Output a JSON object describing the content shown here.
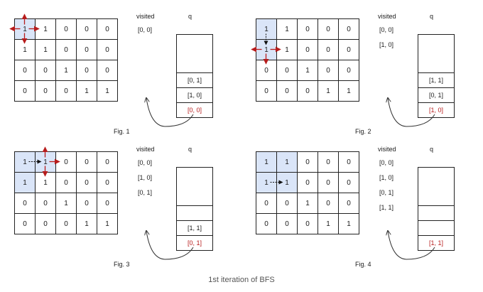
{
  "visited_label": "visited",
  "queue_label": "q",
  "caption": "1st iteration of BFS",
  "figures": [
    {
      "label": "Fig. 1",
      "matrix": [
        [
          "1",
          "1",
          "0",
          "0",
          "0"
        ],
        [
          "1",
          "1",
          "0",
          "0",
          "0"
        ],
        [
          "0",
          "0",
          "1",
          "0",
          "0"
        ],
        [
          "0",
          "0",
          "0",
          "1",
          "1"
        ]
      ],
      "highlight": [
        [
          0,
          0
        ]
      ],
      "visited": [
        "[0, 0]"
      ],
      "queue": [
        "[0, 0]",
        "[1, 0]",
        "[0, 1]"
      ],
      "queue_highlight": 0
    },
    {
      "label": "Fig. 2",
      "matrix": [
        [
          "1",
          "1",
          "0",
          "0",
          "0"
        ],
        [
          "1",
          "1",
          "0",
          "0",
          "0"
        ],
        [
          "0",
          "0",
          "1",
          "0",
          "0"
        ],
        [
          "0",
          "0",
          "0",
          "1",
          "1"
        ]
      ],
      "highlight": [
        [
          0,
          0
        ],
        [
          1,
          0
        ]
      ],
      "visited": [
        "[0, 0]",
        "[1, 0]"
      ],
      "queue": [
        "[1, 0]",
        "[0, 1]",
        "[1, 1]"
      ],
      "queue_highlight": 0
    },
    {
      "label": "Fig. 3",
      "matrix": [
        [
          "1",
          "1",
          "0",
          "0",
          "0"
        ],
        [
          "1",
          "1",
          "0",
          "0",
          "0"
        ],
        [
          "0",
          "0",
          "1",
          "0",
          "0"
        ],
        [
          "0",
          "0",
          "0",
          "1",
          "1"
        ]
      ],
      "highlight": [
        [
          0,
          0
        ],
        [
          1,
          0
        ],
        [
          0,
          1
        ]
      ],
      "visited": [
        "[0, 0]",
        "[1, 0]",
        "[0, 1]"
      ],
      "queue": [
        "[0, 1]",
        "[1, 1]",
        ""
      ],
      "queue_highlight": 0
    },
    {
      "label": "Fig. 4",
      "matrix": [
        [
          "1",
          "1",
          "0",
          "0",
          "0"
        ],
        [
          "1",
          "1",
          "0",
          "0",
          "0"
        ],
        [
          "0",
          "0",
          "1",
          "0",
          "0"
        ],
        [
          "0",
          "0",
          "0",
          "1",
          "1"
        ]
      ],
      "highlight": [
        [
          0,
          0
        ],
        [
          1,
          0
        ],
        [
          0,
          1
        ],
        [
          1,
          1
        ]
      ],
      "visited": [
        "[0, 0]",
        "[1, 0]",
        "[0, 1]",
        "[1, 1]"
      ],
      "queue": [
        "[1, 1]",
        "",
        ""
      ],
      "queue_highlight": 0
    }
  ]
}
